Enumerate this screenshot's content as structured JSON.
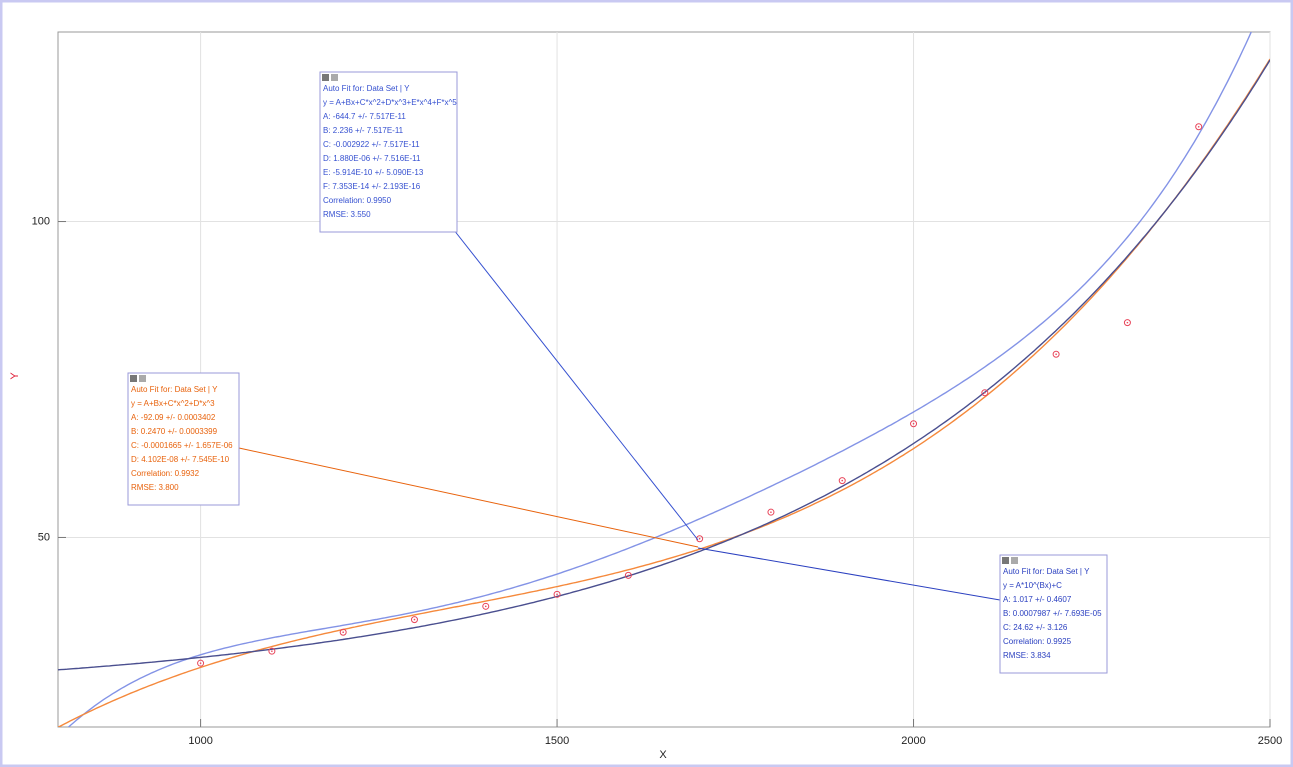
{
  "chart_data": {
    "type": "scatter",
    "xlabel": "X",
    "ylabel": "Y",
    "x": [
      1000,
      1100,
      1200,
      1300,
      1400,
      1500,
      1600,
      1700,
      1800,
      1900,
      2000,
      2100,
      2200,
      2300,
      2400
    ],
    "values": [
      30.1,
      32.0,
      35.0,
      37.0,
      39.1,
      41.0,
      44.0,
      49.8,
      54.0,
      59.0,
      68.0,
      72.9,
      79.0,
      84.0,
      115.0
    ],
    "color": "#e8455a",
    "xlim": [
      800,
      2500
    ],
    "ylim": [
      20,
      130
    ],
    "xticks": [
      1000,
      1500,
      2000,
      2500
    ],
    "yticks": [
      50,
      100
    ],
    "grid": true,
    "fits": [
      {
        "model": "poly",
        "color": "#8393e6",
        "text_color": "#3550d0",
        "name": "Auto Fit for: Data Set | Y",
        "equation": "y = A+Bx+C*x^2+D*x^3+E*x^4+F*x^5",
        "params": [
          {
            "value": -644.7,
            "label": "A: -644.7 +/- 7.517E-11"
          },
          {
            "value": 2.236,
            "label": "B: 2.236 +/- 7.517E-11"
          },
          {
            "value": -0.002922,
            "label": "C: -0.002922 +/- 7.517E-11"
          },
          {
            "value": 1.88e-06,
            "label": "D: 1.880E-06 +/- 7.516E-11"
          },
          {
            "value": -5.914e-10,
            "label": "E: -5.914E-10 +/- 5.090E-13"
          },
          {
            "value": 7.353e-14,
            "label": "F: 7.353E-14 +/- 2.193E-16"
          }
        ],
        "correlation": "Correlation: 0.9950",
        "rmse": "RMSE: 3.550"
      },
      {
        "model": "poly",
        "color": "#f5893c",
        "text_color": "#e8620c",
        "name": "Auto Fit for: Data Set | Y",
        "equation": "y = A+Bx+C*x^2+D*x^3",
        "params": [
          {
            "value": -92.09,
            "label": "A: -92.09 +/- 0.0003402"
          },
          {
            "value": 0.247,
            "label": "B: 0.2470 +/- 0.0003399"
          },
          {
            "value": -0.0001665,
            "label": "C: -0.0001665 +/- 1.657E-06"
          },
          {
            "value": 4.102e-08,
            "label": "D: 4.102E-08 +/- 7.545E-10"
          }
        ],
        "correlation": "Correlation: 0.9932",
        "rmse": "RMSE: 3.800"
      },
      {
        "model": "exp10",
        "color": "#4a4f8f",
        "text_color": "#2b40c0",
        "name": "Auto Fit for: Data Set | Y",
        "equation": "y = A*10^(Bx)+C",
        "params": [
          {
            "value": 1.017,
            "label": "A: 1.017 +/- 0.4607"
          },
          {
            "value": 0.0007987,
            "label": "B: 0.0007987 +/- 7.693E-05"
          },
          {
            "value": 24.62,
            "label": "C: 24.62 +/- 3.126"
          }
        ],
        "correlation": "Correlation: 0.9925",
        "rmse": "RMSE: 3.834"
      }
    ]
  }
}
